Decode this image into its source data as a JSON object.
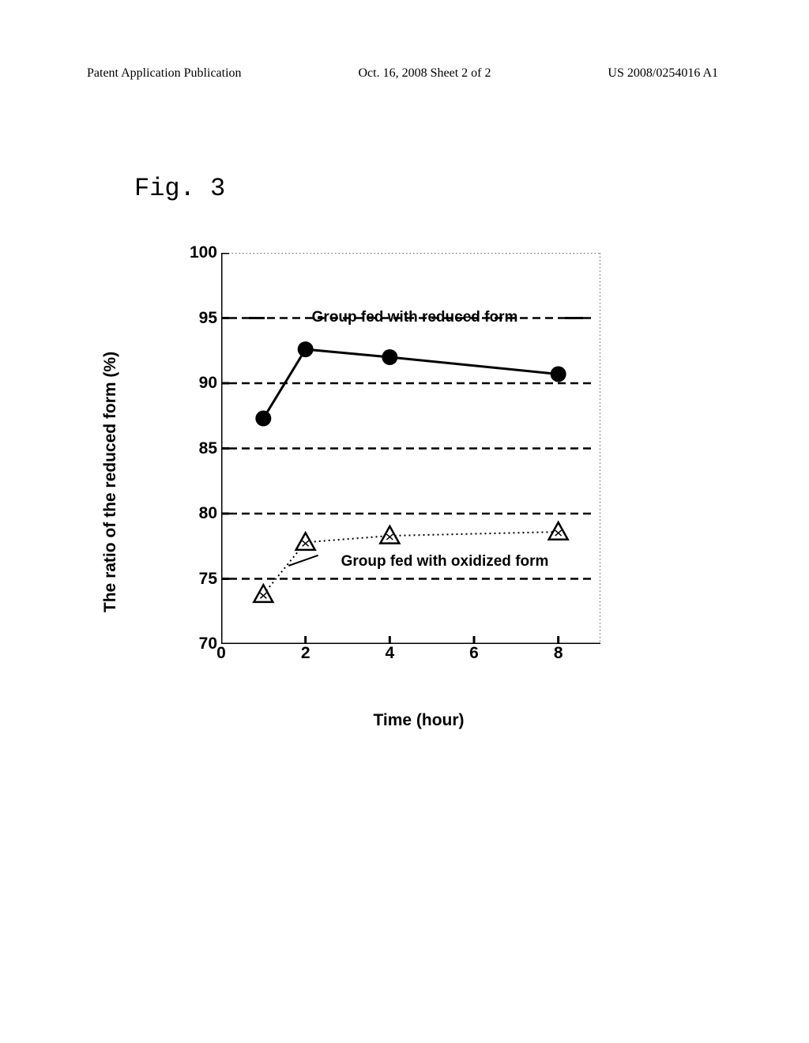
{
  "header": {
    "left": "Patent Application Publication",
    "center": "Oct. 16, 2008  Sheet 2 of 2",
    "right": "US 2008/0254016 A1"
  },
  "fig_label": "Fig. 3",
  "chart": {
    "type": "line",
    "xlabel": "Time (hour)",
    "ylabel": "The ratio of the reduced form (%)",
    "xlim": [
      0,
      9
    ],
    "ylim": [
      70,
      100
    ],
    "xticks": [
      0,
      2,
      4,
      6,
      8
    ],
    "yticks": [
      70,
      75,
      80,
      85,
      90,
      95,
      100
    ],
    "grid_y": [
      75,
      80,
      85,
      90,
      95
    ],
    "grid_dash": "10,6",
    "grid_color": "#000000",
    "right_border_dots": true,
    "top_border_dots": true,
    "axis_linewidth": 3,
    "background_color": "#ffffff",
    "tick_fontsize": 21,
    "label_fontsize": 21,
    "series": [
      {
        "name": "Group fed with reduced form",
        "marker": "filled-circle",
        "marker_size": 20,
        "marker_color": "#000000",
        "line_style": "solid",
        "line_width": 3,
        "line_color": "#000000",
        "label_x": 4.6,
        "label_y": 95,
        "data": [
          {
            "x": 1,
            "y": 87.3
          },
          {
            "x": 2,
            "y": 92.6
          },
          {
            "x": 4,
            "y": 92.0
          },
          {
            "x": 8,
            "y": 90.7
          }
        ]
      },
      {
        "name": "Group fed with oxidized form",
        "marker": "open-triangle",
        "marker_size": 20,
        "marker_color": "#000000",
        "line_style": "dotted",
        "line_width": 2,
        "line_color": "#000000",
        "label_x": 5.3,
        "label_y": 76.3,
        "data": [
          {
            "x": 1,
            "y": 73.8
          },
          {
            "x": 2,
            "y": 77.8
          },
          {
            "x": 4,
            "y": 78.3
          },
          {
            "x": 8,
            "y": 78.6
          }
        ]
      }
    ]
  }
}
